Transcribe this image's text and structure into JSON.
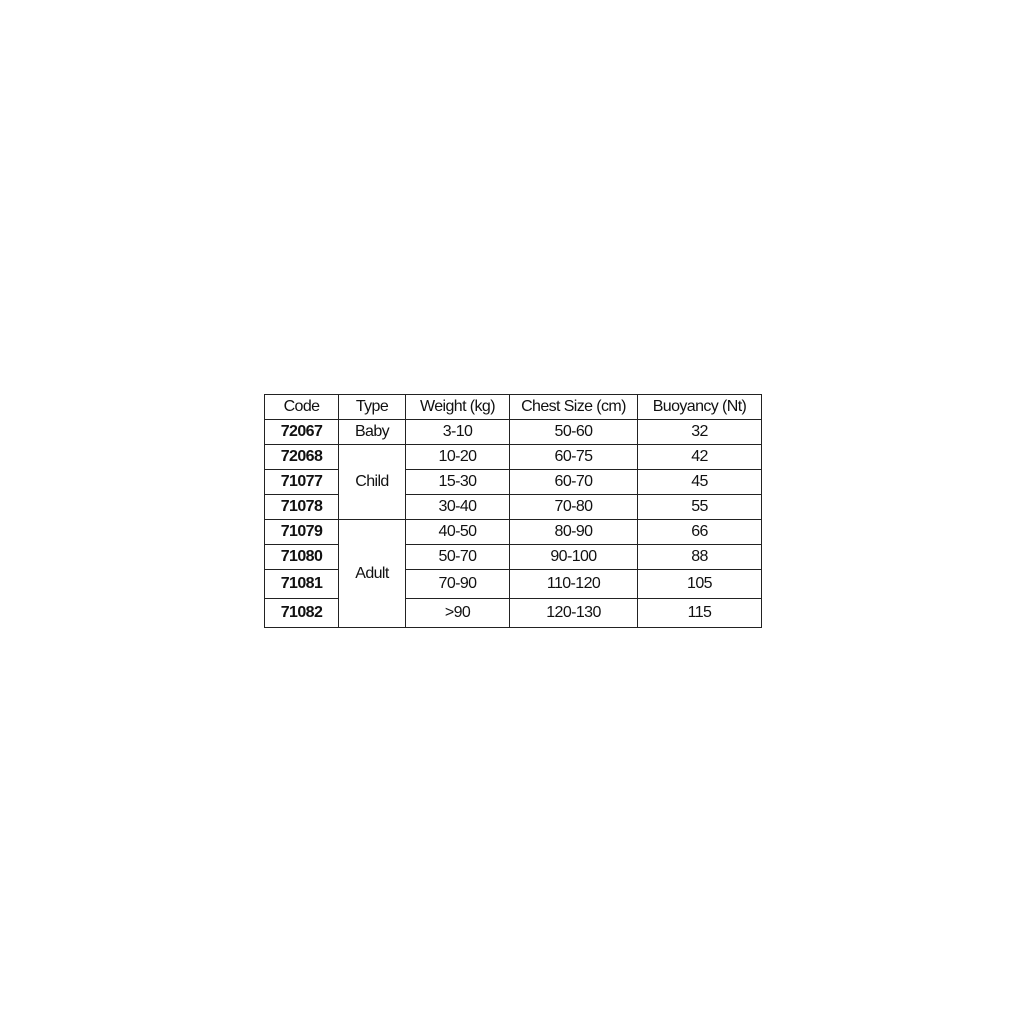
{
  "table": {
    "headers": [
      "Code",
      "Type",
      "Weight (kg)",
      "Chest Size (cm)",
      "Buoyancy (Nt)"
    ],
    "types": [
      "Baby",
      "Child",
      "Adult"
    ],
    "rows": [
      {
        "code": "72067",
        "weight": "3-10",
        "chest": "50-60",
        "buoyancy": "32"
      },
      {
        "code": "72068",
        "weight": "10-20",
        "chest": "60-75",
        "buoyancy": "42"
      },
      {
        "code": "71077",
        "weight": "15-30",
        "chest": "60-70",
        "buoyancy": "45"
      },
      {
        "code": "71078",
        "weight": "30-40",
        "chest": "70-80",
        "buoyancy": "55"
      },
      {
        "code": "71079",
        "weight": "40-50",
        "chest": "80-90",
        "buoyancy": "66"
      },
      {
        "code": "71080",
        "weight": "50-70",
        "chest": "90-100",
        "buoyancy": "88"
      },
      {
        "code": "71081",
        "weight": "70-90",
        "chest": "110-120",
        "buoyancy": "105"
      },
      {
        "code": "71082",
        "weight": ">90",
        "chest": "120-130",
        "buoyancy": "115"
      }
    ]
  }
}
